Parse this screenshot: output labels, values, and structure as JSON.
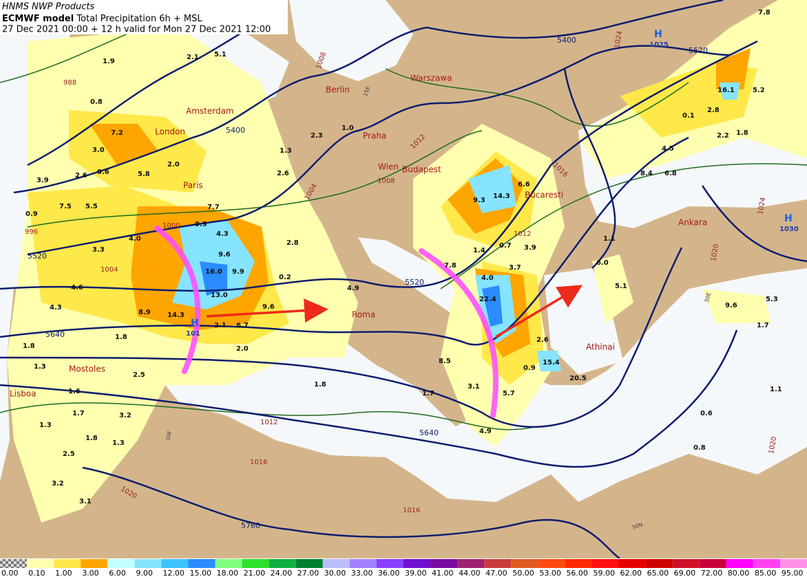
{
  "header": {
    "credit": "HNMS NWP Products",
    "model": "ECMWF model",
    "product": "Total Precipitation 6h + MSL",
    "valid": "27 Dec 2021 00:00 + 12 h valid for Mon 27 Dec 2021 12:00"
  },
  "cities": [
    "London",
    "Amsterdam",
    "Paris",
    "Berlin",
    "Warszawa",
    "Praha",
    "Wien",
    "Budapest",
    "Bucaresti",
    "Roma",
    "Lisboa",
    "Mostoles",
    "Athinai",
    "Ankara"
  ],
  "height_labels": [
    "5400",
    "5400",
    "5520",
    "5520",
    "5520",
    "5640",
    "5640",
    "5760"
  ],
  "isobar_labels": [
    "1000",
    "996",
    "988",
    "1004",
    "1004",
    "1008",
    "1008",
    "1012",
    "1012",
    "1012",
    "1016",
    "1016",
    "1016",
    "1020",
    "1020",
    "1020",
    "1024",
    "1024"
  ],
  "highs": [
    {
      "symbol": "H",
      "pressure": "1025"
    },
    {
      "symbol": "H",
      "pressure": "1030"
    },
    {
      "symbol": "H",
      "pressure": "101"
    }
  ],
  "grid_labels": [
    "15E",
    "0W",
    "30N",
    "30E"
  ],
  "amounts": [
    "2.1",
    "5.1",
    "1.9",
    "0.8",
    "7.2",
    "3.0",
    "0.6",
    "3.9",
    "2.6",
    "5.8",
    "2.0",
    "7.5",
    "5.5",
    "0.9",
    "4.0",
    "3.3",
    "9.9",
    "4.3",
    "7.7",
    "9.6",
    "16.0",
    "9.9",
    "13.0",
    "4.6",
    "4.3",
    "8.9",
    "14.3",
    "2.1",
    "6.7",
    "9.6",
    "0.2",
    "4.9",
    "2.8",
    "2.3",
    "1.0",
    "1.3",
    "2.6",
    "1.8",
    "1.3",
    "1.6",
    "1.8",
    "2.0",
    "2.5",
    "1.7",
    "3.2",
    "1.3",
    "1.8",
    "1.3",
    "2.5",
    "3.2",
    "3.1",
    "1.8",
    "1.7",
    "8.5",
    "3.1",
    "5.7",
    "4.9",
    "7.8",
    "1.4",
    "0.7",
    "3.9",
    "3.7",
    "9.3",
    "14.3",
    "6.6",
    "22.4",
    "4.0",
    "2.6",
    "0.9",
    "15.4",
    "20.5",
    "6.0",
    "5.1",
    "1.1",
    "9.6",
    "5.3",
    "1.7",
    "1.1",
    "0.6",
    "0.8",
    "0.1",
    "2.8",
    "2.2",
    "1.8",
    "4.5",
    "8.4",
    "6.8",
    "16.1",
    "5.2",
    "7.8"
  ],
  "legend": {
    "labels": [
      "0.00",
      "0.10",
      "1.00",
      "3.00",
      "6.00",
      "9.00",
      "12.00",
      "15.00",
      "18.00",
      "21.00",
      "24.00",
      "27.00",
      "30.00",
      "33.00",
      "36.00",
      "39.00",
      "41.00",
      "44.00",
      "47.00",
      "50.00",
      "53.00",
      "56.00",
      "59.00",
      "62.00",
      "65.00",
      "69.00",
      "72.00",
      "80.00",
      "85.00",
      "95.00"
    ],
    "colors": [
      "checker",
      "#ffffb0",
      "#ffe84a",
      "#ffa500",
      "#c4ffff",
      "#86e4ff",
      "#3cc4ff",
      "#2a8cff",
      "#80ff80",
      "#2ce02c",
      "#10b040",
      "#008030",
      "#bcbcff",
      "#a080ff",
      "#8a40ff",
      "#7010d0",
      "#7a0aa0",
      "#a02070",
      "#c83c3c",
      "#e05a20",
      "#ff4a10",
      "#ff2a00",
      "#ff1010",
      "#e80000",
      "#d00000",
      "#d0102a",
      "#c8003c",
      "#ff00ff",
      "#ff40f0",
      "#ff90e8"
    ]
  }
}
